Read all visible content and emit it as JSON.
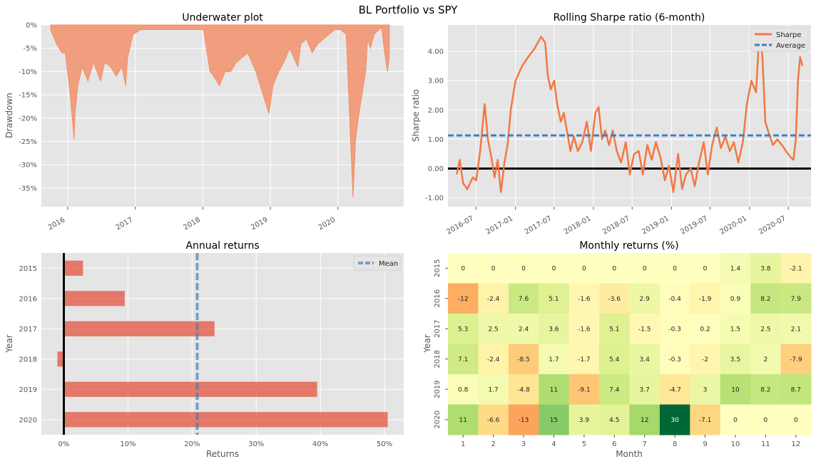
{
  "figure": {
    "suptitle": "BL Portfolio vs SPY"
  },
  "chart_data": [
    {
      "type": "area",
      "title": "Underwater plot",
      "xlabel": "",
      "ylabel": "Drawdown",
      "color": "#F28C64",
      "grid": true,
      "ylim": [
        -39,
        0
      ],
      "y_ticks": [
        "0%",
        "-5%",
        "-10%",
        "-15%",
        "-20%",
        "-25%",
        "-30%",
        "-35%"
      ],
      "x_ticks": [
        "2016",
        "2017",
        "2018",
        "2019",
        "2020"
      ],
      "series": [
        {
          "x": [
            "2015-10-01",
            "2015-11-01",
            "2015-12-01",
            "2015-12-20",
            "2016-01-15",
            "2016-02-05",
            "2016-02-10",
            "2016-02-25",
            "2016-03-20",
            "2016-04-20",
            "2016-05-20",
            "2016-06-27",
            "2016-07-20",
            "2016-08-20",
            "2016-09-20",
            "2016-10-20",
            "2016-11-10",
            "2016-11-20",
            "2016-12-20",
            "2017-02-01",
            "2017-03-01",
            "2017-05-01",
            "2017-07-01",
            "2017-09-01",
            "2017-11-01",
            "2018-01-05",
            "2018-02-09",
            "2018-03-01",
            "2018-04-01",
            "2018-05-01",
            "2018-06-01",
            "2018-07-01",
            "2018-08-01",
            "2018-09-01",
            "2018-10-15",
            "2018-11-15",
            "2018-12-24",
            "2019-01-15",
            "2019-02-15",
            "2019-03-15",
            "2019-04-15",
            "2019-05-30",
            "2019-06-15",
            "2019-07-15",
            "2019-08-15",
            "2019-09-15",
            "2019-10-15",
            "2019-11-15",
            "2019-12-15",
            "2020-01-15",
            "2020-02-15",
            "2020-03-05",
            "2020-03-23",
            "2020-04-05",
            "2020-04-20",
            "2020-05-10",
            "2020-05-30",
            "2020-06-10",
            "2020-06-25",
            "2020-07-15",
            "2020-08-10",
            "2020-08-25",
            "2020-09-10",
            "2020-09-25",
            "2020-10-05"
          ],
          "values": [
            -1,
            -4,
            -6,
            -6,
            -15,
            -24.5,
            -19,
            -13,
            -9,
            -12,
            -8,
            -12,
            -8,
            -9,
            -11,
            -9,
            -13,
            -7,
            -2,
            -1,
            -1,
            -1,
            -1,
            -1,
            -1,
            -1,
            -10,
            -11,
            -13,
            -10,
            -10,
            -8,
            -7,
            -6,
            -10,
            -14,
            -19,
            -13,
            -10,
            -8,
            -5,
            -9,
            -4,
            -3,
            -6,
            -4,
            -3,
            -2,
            -1,
            -1,
            -2,
            -20,
            -37,
            -25,
            -20,
            -15,
            -10,
            -3,
            -5,
            -2,
            -1,
            -0.5,
            -6,
            -10,
            -7
          ]
        }
      ]
    },
    {
      "type": "line",
      "title": "Rolling Sharpe ratio (6-month)",
      "xlabel": "",
      "ylabel": "Sharpe ratio",
      "grid": true,
      "ylim": [
        -1.3,
        4.9
      ],
      "y_ticks": [
        "-1.00",
        "0.00",
        "1.00",
        "2.00",
        "3.00",
        "4.00"
      ],
      "x_ticks": [
        "2016-07",
        "2017-01",
        "2017-07",
        "2018-01",
        "2018-07",
        "2019-01",
        "2019-07",
        "2020-01",
        "2020-07"
      ],
      "legend": {
        "position": "top-right",
        "entries": [
          "Sharpe",
          "Average"
        ]
      },
      "average": 1.13,
      "zero_line": 0,
      "series": [
        {
          "name": "Sharpe",
          "color": "#F47742",
          "x": [
            "2016-04-01",
            "2016-04-15",
            "2016-05-01",
            "2016-05-20",
            "2016-06-15",
            "2016-07-01",
            "2016-07-20",
            "2016-08-10",
            "2016-08-25",
            "2016-09-10",
            "2016-09-25",
            "2016-10-10",
            "2016-10-25",
            "2016-11-10",
            "2016-11-25",
            "2016-12-10",
            "2017-01-01",
            "2017-02-01",
            "2017-03-01",
            "2017-04-01",
            "2017-05-01",
            "2017-05-20",
            "2017-06-01",
            "2017-06-15",
            "2017-07-01",
            "2017-07-15",
            "2017-08-01",
            "2017-08-15",
            "2017-09-01",
            "2017-09-15",
            "2017-10-01",
            "2017-10-20",
            "2017-11-10",
            "2017-12-01",
            "2017-12-20",
            "2018-01-10",
            "2018-01-25",
            "2018-02-10",
            "2018-02-25",
            "2018-03-15",
            "2018-04-01",
            "2018-04-20",
            "2018-05-10",
            "2018-06-01",
            "2018-06-20",
            "2018-07-10",
            "2018-08-01",
            "2018-08-20",
            "2018-09-10",
            "2018-10-01",
            "2018-10-20",
            "2018-11-10",
            "2018-12-01",
            "2018-12-20",
            "2019-01-10",
            "2019-02-01",
            "2019-02-20",
            "2019-03-10",
            "2019-04-01",
            "2019-04-20",
            "2019-05-10",
            "2019-06-01",
            "2019-06-20",
            "2019-07-10",
            "2019-08-01",
            "2019-08-20",
            "2019-09-10",
            "2019-10-01",
            "2019-10-20",
            "2019-11-10",
            "2019-12-01",
            "2019-12-20",
            "2020-01-10",
            "2020-02-01",
            "2020-02-15",
            "2020-03-01",
            "2020-03-15",
            "2020-04-01",
            "2020-04-20",
            "2020-05-10",
            "2020-06-01",
            "2020-06-20",
            "2020-07-10",
            "2020-07-25",
            "2020-08-05",
            "2020-08-15",
            "2020-08-25",
            "2020-09-05"
          ],
          "values": [
            -0.2,
            0.3,
            -0.5,
            -0.7,
            -0.3,
            -0.4,
            0.6,
            2.2,
            1.0,
            0.4,
            -0.3,
            0.3,
            -0.8,
            0.2,
            0.8,
            2.0,
            3.0,
            3.5,
            3.8,
            4.1,
            4.5,
            4.3,
            3.2,
            2.7,
            3.0,
            2.2,
            1.6,
            1.9,
            1.2,
            0.6,
            1.1,
            0.6,
            0.9,
            1.6,
            0.6,
            1.9,
            2.1,
            1.0,
            1.3,
            0.8,
            1.3,
            0.6,
            0.2,
            0.9,
            -0.2,
            0.5,
            0.6,
            -0.2,
            0.8,
            0.3,
            0.9,
            0.4,
            -0.4,
            0.1,
            -0.8,
            0.5,
            -0.7,
            -0.2,
            0.0,
            -0.6,
            0.2,
            0.9,
            -0.2,
            0.8,
            1.4,
            0.7,
            1.1,
            0.6,
            0.9,
            0.2,
            0.9,
            2.2,
            3.0,
            2.6,
            4.5,
            3.9,
            1.6,
            1.2,
            0.8,
            1.0,
            0.8,
            0.6,
            0.4,
            0.3,
            1.0,
            3.0,
            3.8,
            3.5
          ]
        }
      ]
    },
    {
      "type": "bar",
      "orientation": "horizontal",
      "title": "Annual returns",
      "xlabel": "Returns",
      "ylabel": "Year",
      "grid": true,
      "categories": [
        "2015",
        "2016",
        "2017",
        "2018",
        "2019",
        "2020"
      ],
      "values": [
        3.0,
        9.5,
        23.5,
        -1.0,
        39.5,
        50.5
      ],
      "xlim": [
        -3.5,
        53
      ],
      "x_ticks": [
        "0%",
        "10%",
        "20%",
        "30%",
        "40%",
        "50%"
      ],
      "mean": 20.8,
      "legend": {
        "position": "top-right",
        "entries": [
          "Mean"
        ]
      },
      "bar_color": "#E24A33",
      "mean_color": "#4682B4"
    },
    {
      "type": "heatmap",
      "title": "Monthly returns (%)",
      "xlabel": "Month",
      "ylabel": "Year",
      "columns": [
        "1",
        "2",
        "3",
        "4",
        "5",
        "6",
        "7",
        "8",
        "9",
        "10",
        "11",
        "12"
      ],
      "rows": [
        "2015",
        "2016",
        "2017",
        "2018",
        "2019",
        "2020"
      ],
      "cells": [
        [
          "0",
          "0",
          "0",
          "0",
          "0",
          "0",
          "0",
          "0",
          "0",
          "1.4",
          "3.8",
          "-2.1"
        ],
        [
          "-12",
          "-2.4",
          "7.6",
          "5.1",
          "-1.6",
          "-3.6",
          "2.9",
          "-0.4",
          "-1.9",
          "0.9",
          "8.2",
          "7.9"
        ],
        [
          "5.3",
          "2.5",
          "2.4",
          "3.6",
          "-1.6",
          "5.1",
          "-1.5",
          "-0.3",
          "0.2",
          "1.5",
          "2.5",
          "2.1"
        ],
        [
          "7.1",
          "-2.4",
          "-8.5",
          "1.7",
          "-1.7",
          "5.4",
          "3.4",
          "-0.3",
          "-2",
          "3.5",
          "2",
          "-7.9"
        ],
        [
          "0.8",
          "1.7",
          "-4.8",
          "11",
          "-9.1",
          "7.4",
          "3.7",
          "-4.7",
          "3",
          "10",
          "8.2",
          "8.7"
        ],
        [
          "11",
          "-6.6",
          "-13",
          "15",
          "3.9",
          "4.5",
          "12",
          "30",
          "-7.1",
          "0",
          "0",
          "0"
        ]
      ],
      "colormap": "RdYlGn"
    }
  ]
}
